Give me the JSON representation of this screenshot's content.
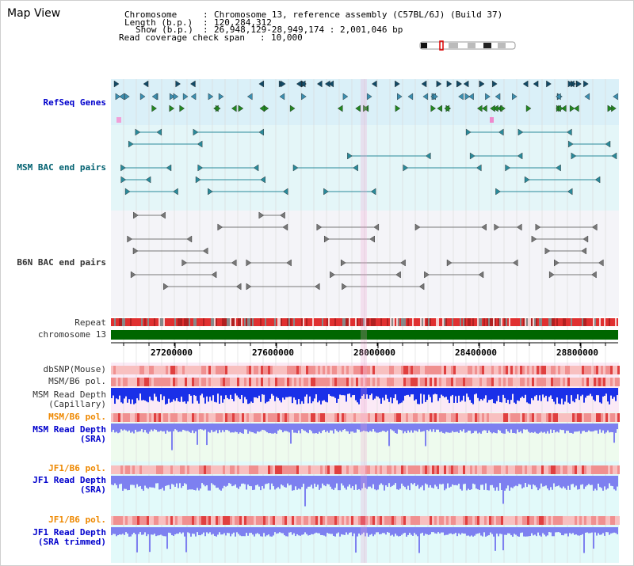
{
  "title": "Map View",
  "header": {
    "chromosome_key": "Chromosome",
    "chromosome_val": "Chromosome 13, reference assembly (C57BL/6J) (Build 37)",
    "length_key": "Length (b.p.)",
    "length_val": "120,284,312",
    "show_key": "Show (b.p.)",
    "show_val": "26,948,129-28,949,174 : 2,001,046 bp",
    "coverage_key": "Read coverage check span",
    "coverage_val": "10,000"
  },
  "tracks": {
    "refseq": "RefSeq Genes",
    "msm_bac": "MSM BAC end pairs",
    "b6n_bac": "B6N BAC end pairs",
    "repeat": "Repeat",
    "chromosome": "chromosome 13",
    "dbsnp": "dbSNP(Mouse)",
    "msm_b6_pol_1": "MSM/B6 pol.",
    "msm_depth_cap_1": "MSM Read Depth",
    "msm_depth_cap_2": "(Capillary)",
    "msm_b6_pol_2": "MSM/B6 pol.",
    "msm_depth_sra_1": "MSM Read Depth",
    "msm_depth_sra_2": "(SRA)",
    "jf1_b6_pol_1": "JF1/B6 pol.",
    "jf1_depth_sra_1": "JF1 Read Depth",
    "jf1_depth_sra_2": "(SRA)",
    "jf1_b6_pol_2": "JF1/B6 pol.",
    "jf1_depth_trim_1": "JF1 Read Depth",
    "jf1_depth_trim_2": "(SRA trimmed)"
  },
  "axis": {
    "ticks": [
      "27200000",
      "27600000",
      "28000000",
      "28400000",
      "28800000"
    ]
  },
  "colors": {
    "refseq_bg": "#daf0f8",
    "bac_bg": "#e4f6f8",
    "b6n_bg": "#f4f4f8",
    "chromosome": "#006600",
    "depth_capillary": "#1a30e8",
    "depth_sra": "#7d80f0",
    "pol_dark": "#e04040",
    "pol_light": "#f8c0c0",
    "repeat_red": "#e03030",
    "repeat_gray": "#888888"
  }
}
